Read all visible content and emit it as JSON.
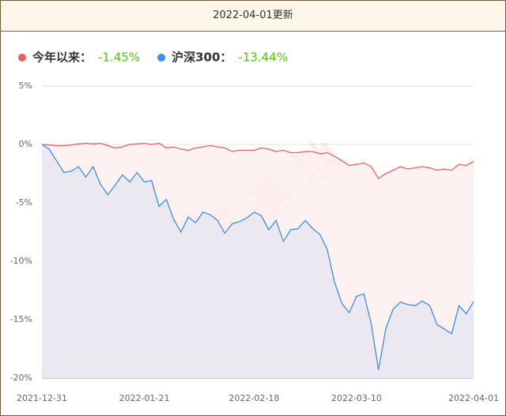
{
  "header": "2022-04-01更新",
  "chart_data": {
    "type": "area",
    "watermark": "搞钱基地",
    "categories": [
      "2021-12-31",
      null,
      null,
      null,
      null,
      null,
      null,
      null,
      null,
      null,
      null,
      null,
      null,
      null,
      "2022-01-21",
      null,
      null,
      null,
      null,
      null,
      null,
      null,
      null,
      null,
      null,
      null,
      null,
      null,
      null,
      "2022-02-18",
      null,
      null,
      null,
      null,
      null,
      null,
      null,
      null,
      null,
      null,
      null,
      null,
      null,
      "2022-03-10",
      null,
      null,
      null,
      null,
      null,
      null,
      null,
      null,
      null,
      null,
      null,
      null,
      null,
      null,
      null,
      "2022-04-01"
    ],
    "ylim": [
      -20,
      5
    ],
    "yticks": [
      {
        "value": 5,
        "label": "5%"
      },
      {
        "value": 0,
        "label": "0%"
      },
      {
        "value": -5,
        "label": "-5%"
      },
      {
        "value": -10,
        "label": "-10%"
      },
      {
        "value": -15,
        "label": "-15%"
      },
      {
        "value": -20,
        "label": "-20%"
      }
    ],
    "grid": true,
    "legend": "top-left",
    "series": [
      {
        "name": "今年以来：",
        "legend_label": "-1.45%",
        "color": "#e8625f",
        "fill": "#fdeeee",
        "values": [
          0,
          -0.05,
          -0.1,
          -0.1,
          -0.05,
          0.05,
          0.1,
          0.05,
          0.1,
          -0.1,
          -0.3,
          -0.2,
          0.0,
          0.05,
          0.1,
          0.0,
          0.1,
          -0.3,
          -0.2,
          -0.4,
          -0.5,
          -0.3,
          -0.2,
          -0.1,
          -0.2,
          -0.3,
          -0.6,
          -0.5,
          -0.5,
          -0.5,
          -0.3,
          -0.4,
          -0.6,
          -0.5,
          -0.7,
          -0.7,
          -0.6,
          -0.6,
          -0.8,
          -0.7,
          -1.0,
          -1.4,
          -1.8,
          -1.7,
          -1.6,
          -1.9,
          -2.9,
          -2.5,
          -2.2,
          -1.9,
          -2.1,
          -2.0,
          -1.9,
          -2.0,
          -2.2,
          -2.1,
          -2.2,
          -1.7,
          -1.8,
          -1.45
        ]
      },
      {
        "name": "沪深300：",
        "legend_label": "-13.44%",
        "color": "#3d8ee6",
        "fill": "#e9e6f2",
        "values": [
          0,
          -0.4,
          -1.4,
          -2.4,
          -2.3,
          -1.9,
          -2.8,
          -1.9,
          -3.4,
          -4.3,
          -3.5,
          -2.6,
          -3.2,
          -2.4,
          -3.2,
          -3.1,
          -5.3,
          -4.7,
          -6.4,
          -7.5,
          -6.2,
          -6.7,
          -5.8,
          -6.0,
          -6.5,
          -7.6,
          -6.8,
          -6.6,
          -6.3,
          -5.8,
          -6.1,
          -7.3,
          -6.5,
          -8.3,
          -7.3,
          -7.2,
          -6.5,
          -7.2,
          -7.7,
          -9.0,
          -11.8,
          -13.6,
          -14.4,
          -13.0,
          -12.8,
          -15.3,
          -19.3,
          -15.8,
          -14.1,
          -13.5,
          -13.7,
          -13.8,
          -13.4,
          -13.8,
          -15.4,
          -15.8,
          -16.2,
          -13.8,
          -14.5,
          -13.44
        ]
      }
    ]
  }
}
